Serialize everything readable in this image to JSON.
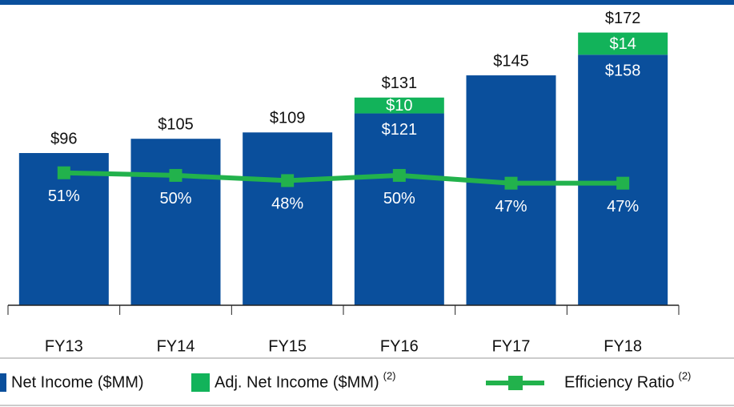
{
  "chart_data": {
    "type": "bar",
    "stacked": true,
    "categories": [
      "FY13",
      "FY14",
      "FY15",
      "FY16",
      "FY17",
      "FY18"
    ],
    "series": [
      {
        "name": "Net Income ($MM)",
        "color": "#0a4f9c",
        "values": [
          96,
          105,
          109,
          121,
          145,
          158
        ],
        "value_labels": [
          null,
          null,
          null,
          "$121",
          null,
          "$158"
        ]
      },
      {
        "name": "Adj. Net Income ($MM)",
        "footnote": "(2)",
        "color": "#12b35a",
        "values": [
          null,
          null,
          null,
          10,
          null,
          14
        ],
        "value_labels": [
          null,
          null,
          null,
          "$10",
          null,
          "$14"
        ]
      },
      {
        "name": "Efficiency Ratio",
        "footnote": "(2)",
        "type": "line",
        "axis": "y2",
        "color": "#22b24c",
        "values": [
          51,
          50,
          48,
          50,
          47,
          47
        ],
        "value_labels": [
          "51%",
          "50%",
          "48%",
          "50%",
          "47%",
          "47%"
        ]
      }
    ],
    "total_labels": [
      "$96",
      "$105",
      "$109",
      "$131",
      "$145",
      "$172"
    ],
    "ylim": [
      0,
      190
    ],
    "y2lim": [
      0,
      116
    ],
    "grid": false
  }
}
